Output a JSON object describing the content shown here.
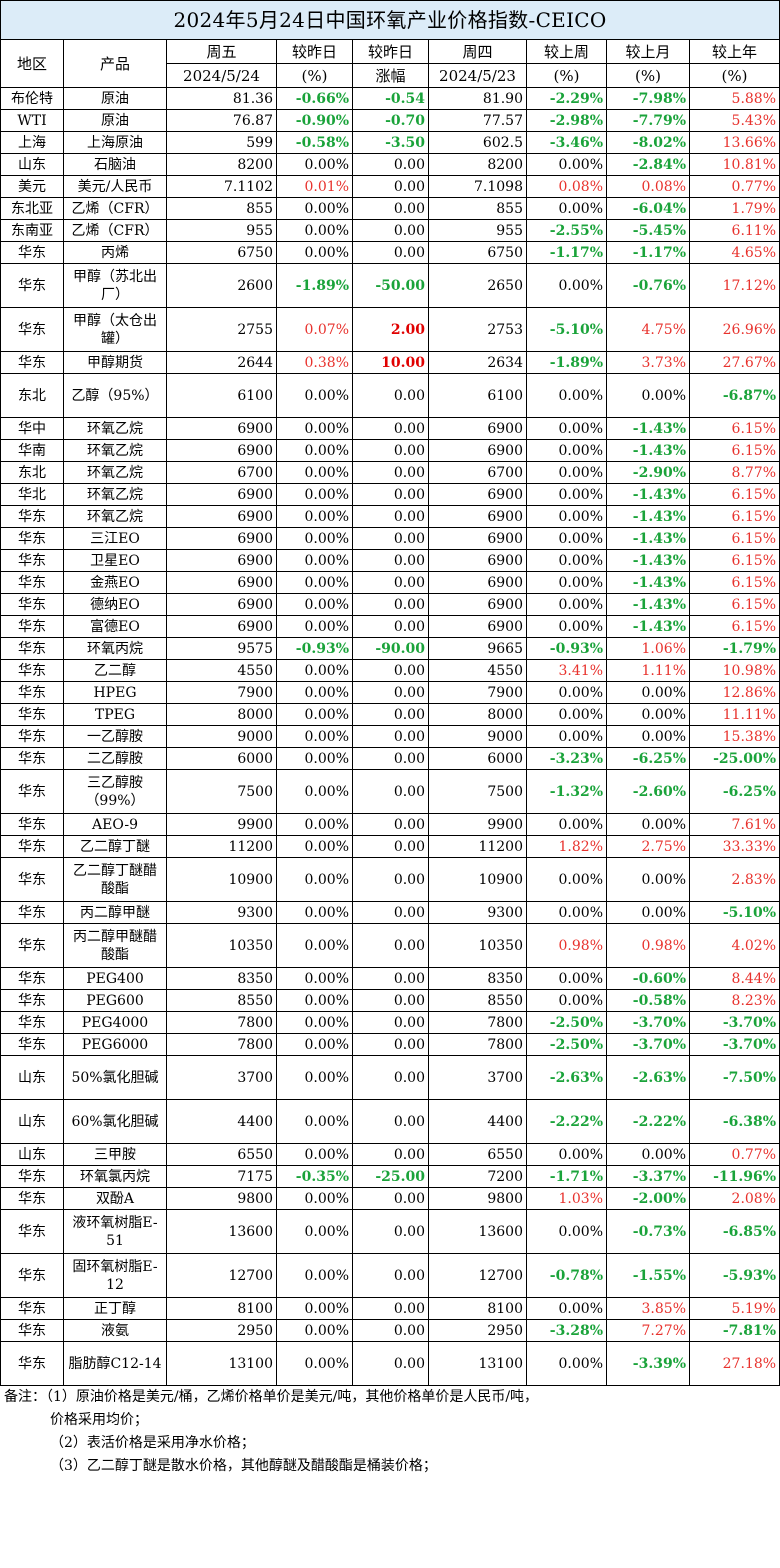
{
  "title": "2024年5月24日中国环氧产业价格指数-CEICO",
  "header": {
    "region": "地区",
    "product": "产品",
    "fri": "周五",
    "fri_date": "2024/5/24",
    "vs_prev": "较昨日",
    "vs_prev_unit": "(%)",
    "vs_prev2": "较昨日",
    "vs_prev2_unit": "涨幅",
    "thu": "周四",
    "thu_date": "2024/5/23",
    "vs_week": "较上周",
    "vs_week_unit": "(%)",
    "vs_month": "较上月",
    "vs_month_unit": "(%)",
    "vs_year": "较上年",
    "vs_year_unit": "(%)"
  },
  "rows": [
    {
      "region": "布伦特",
      "product": "原油",
      "fri": "81.36",
      "pct": "-0.66%",
      "chg": "-0.54",
      "thu": "81.90",
      "week": "-2.29%",
      "month": "-7.98%",
      "year": "5.88%"
    },
    {
      "region": "WTI",
      "product": "原油",
      "fri": "76.87",
      "pct": "-0.90%",
      "chg": "-0.70",
      "thu": "77.57",
      "week": "-2.98%",
      "month": "-7.79%",
      "year": "5.43%"
    },
    {
      "region": "上海",
      "product": "上海原油",
      "fri": "599",
      "pct": "-0.58%",
      "chg": "-3.50",
      "thu": "602.5",
      "week": "-3.46%",
      "month": "-8.02%",
      "year": "13.66%"
    },
    {
      "region": "山东",
      "product": "石脑油",
      "fri": "8200",
      "pct": "0.00%",
      "chg": "0.00",
      "thu": "8200",
      "week": "0.00%",
      "month": "-2.84%",
      "year": "10.81%"
    },
    {
      "region": "美元",
      "product": "美元/人民币",
      "fri": "7.1102",
      "pct": "0.01%",
      "chg": "0.00",
      "thu": "7.1098",
      "week": "0.08%",
      "month": "0.08%",
      "year": "0.77%"
    },
    {
      "region": "东北亚",
      "product": "乙烯（CFR）",
      "fri": "855",
      "pct": "0.00%",
      "chg": "0.00",
      "thu": "855",
      "week": "0.00%",
      "month": "-6.04%",
      "year": "1.79%"
    },
    {
      "region": "东南亚",
      "product": "乙烯（CFR）",
      "fri": "955",
      "pct": "0.00%",
      "chg": "0.00",
      "thu": "955",
      "week": "-2.55%",
      "month": "-5.45%",
      "year": "6.11%"
    },
    {
      "region": "华东",
      "product": "丙烯",
      "fri": "6750",
      "pct": "0.00%",
      "chg": "0.00",
      "thu": "6750",
      "week": "-1.17%",
      "month": "-1.17%",
      "year": "4.65%"
    },
    {
      "region": "华东",
      "product": "甲醇（苏北出厂）",
      "fri": "2600",
      "pct": "-1.89%",
      "chg": "-50.00",
      "thu": "2650",
      "week": "0.00%",
      "month": "-0.76%",
      "year": "17.12%",
      "tall": true
    },
    {
      "region": "华东",
      "product": "甲醇（太仓出罐）",
      "fri": "2755",
      "pct": "0.07%",
      "chg": "2.00",
      "thu": "2753",
      "week": "-5.10%",
      "month": "4.75%",
      "year": "26.96%",
      "tall": true
    },
    {
      "region": "华东",
      "product": "甲醇期货",
      "fri": "2644",
      "pct": "0.38%",
      "chg": "10.00",
      "thu": "2634",
      "week": "-1.89%",
      "month": "3.73%",
      "year": "27.67%"
    },
    {
      "region": "东北",
      "product": "乙醇（95%）",
      "fri": "6100",
      "pct": "0.00%",
      "chg": "0.00",
      "thu": "6100",
      "week": "0.00%",
      "month": "0.00%",
      "year": "-6.87%",
      "tall": true
    },
    {
      "region": "华中",
      "product": "环氧乙烷",
      "fri": "6900",
      "pct": "0.00%",
      "chg": "0.00",
      "thu": "6900",
      "week": "0.00%",
      "month": "-1.43%",
      "year": "6.15%"
    },
    {
      "region": "华南",
      "product": "环氧乙烷",
      "fri": "6900",
      "pct": "0.00%",
      "chg": "0.00",
      "thu": "6900",
      "week": "0.00%",
      "month": "-1.43%",
      "year": "6.15%"
    },
    {
      "region": "东北",
      "product": "环氧乙烷",
      "fri": "6700",
      "pct": "0.00%",
      "chg": "0.00",
      "thu": "6700",
      "week": "0.00%",
      "month": "-2.90%",
      "year": "8.77%"
    },
    {
      "region": "华北",
      "product": "环氧乙烷",
      "fri": "6900",
      "pct": "0.00%",
      "chg": "0.00",
      "thu": "6900",
      "week": "0.00%",
      "month": "-1.43%",
      "year": "6.15%"
    },
    {
      "region": "华东",
      "product": "环氧乙烷",
      "fri": "6900",
      "pct": "0.00%",
      "chg": "0.00",
      "thu": "6900",
      "week": "0.00%",
      "month": "-1.43%",
      "year": "6.15%"
    },
    {
      "region": "华东",
      "product": "三江EO",
      "fri": "6900",
      "pct": "0.00%",
      "chg": "0.00",
      "thu": "6900",
      "week": "0.00%",
      "month": "-1.43%",
      "year": "6.15%"
    },
    {
      "region": "华东",
      "product": "卫星EO",
      "fri": "6900",
      "pct": "0.00%",
      "chg": "0.00",
      "thu": "6900",
      "week": "0.00%",
      "month": "-1.43%",
      "year": "6.15%"
    },
    {
      "region": "华东",
      "product": "金燕EO",
      "fri": "6900",
      "pct": "0.00%",
      "chg": "0.00",
      "thu": "6900",
      "week": "0.00%",
      "month": "-1.43%",
      "year": "6.15%"
    },
    {
      "region": "华东",
      "product": "德纳EO",
      "fri": "6900",
      "pct": "0.00%",
      "chg": "0.00",
      "thu": "6900",
      "week": "0.00%",
      "month": "-1.43%",
      "year": "6.15%"
    },
    {
      "region": "华东",
      "product": "富德EO",
      "fri": "6900",
      "pct": "0.00%",
      "chg": "0.00",
      "thu": "6900",
      "week": "0.00%",
      "month": "-1.43%",
      "year": "6.15%"
    },
    {
      "region": "华东",
      "product": "环氧丙烷",
      "fri": "9575",
      "pct": "-0.93%",
      "chg": "-90.00",
      "thu": "9665",
      "week": "-0.93%",
      "month": "1.06%",
      "year": "-1.79%"
    },
    {
      "region": "华东",
      "product": "乙二醇",
      "fri": "4550",
      "pct": "0.00%",
      "chg": "0.00",
      "thu": "4550",
      "week": "3.41%",
      "month": "1.11%",
      "year": "10.98%"
    },
    {
      "region": "华东",
      "product": "HPEG",
      "fri": "7900",
      "pct": "0.00%",
      "chg": "0.00",
      "thu": "7900",
      "week": "0.00%",
      "month": "0.00%",
      "year": "12.86%"
    },
    {
      "region": "华东",
      "product": "TPEG",
      "fri": "8000",
      "pct": "0.00%",
      "chg": "0.00",
      "thu": "8000",
      "week": "0.00%",
      "month": "0.00%",
      "year": "11.11%"
    },
    {
      "region": "华东",
      "product": "一乙醇胺",
      "fri": "9000",
      "pct": "0.00%",
      "chg": "0.00",
      "thu": "9000",
      "week": "0.00%",
      "month": "0.00%",
      "year": "15.38%"
    },
    {
      "region": "华东",
      "product": "二乙醇胺",
      "fri": "6000",
      "pct": "0.00%",
      "chg": "0.00",
      "thu": "6000",
      "week": "-3.23%",
      "month": "-6.25%",
      "year": "-25.00%"
    },
    {
      "region": "华东",
      "product": "三乙醇胺（99%）",
      "fri": "7500",
      "pct": "0.00%",
      "chg": "0.00",
      "thu": "7500",
      "week": "-1.32%",
      "month": "-2.60%",
      "year": "-6.25%",
      "tall": true
    },
    {
      "region": "华东",
      "product": "AEO-9",
      "fri": "9900",
      "pct": "0.00%",
      "chg": "0.00",
      "thu": "9900",
      "week": "0.00%",
      "month": "0.00%",
      "year": "7.61%"
    },
    {
      "region": "华东",
      "product": "乙二醇丁醚",
      "fri": "11200",
      "pct": "0.00%",
      "chg": "0.00",
      "thu": "11200",
      "week": "1.82%",
      "month": "2.75%",
      "year": "33.33%"
    },
    {
      "region": "华东",
      "product": "乙二醇丁醚醋酸酯",
      "fri": "10900",
      "pct": "0.00%",
      "chg": "0.00",
      "thu": "10900",
      "week": "0.00%",
      "month": "0.00%",
      "year": "2.83%",
      "tall": true
    },
    {
      "region": "华东",
      "product": "丙二醇甲醚",
      "fri": "9300",
      "pct": "0.00%",
      "chg": "0.00",
      "thu": "9300",
      "week": "0.00%",
      "month": "0.00%",
      "year": "-5.10%"
    },
    {
      "region": "华东",
      "product": "丙二醇甲醚醋酸酯",
      "fri": "10350",
      "pct": "0.00%",
      "chg": "0.00",
      "thu": "10350",
      "week": "0.98%",
      "month": "0.98%",
      "year": "4.02%",
      "tall": true
    },
    {
      "region": "华东",
      "product": "PEG400",
      "fri": "8350",
      "pct": "0.00%",
      "chg": "0.00",
      "thu": "8350",
      "week": "0.00%",
      "month": "-0.60%",
      "year": "8.44%"
    },
    {
      "region": "华东",
      "product": "PEG600",
      "fri": "8550",
      "pct": "0.00%",
      "chg": "0.00",
      "thu": "8550",
      "week": "0.00%",
      "month": "-0.58%",
      "year": "8.23%"
    },
    {
      "region": "华东",
      "product": "PEG4000",
      "fri": "7800",
      "pct": "0.00%",
      "chg": "0.00",
      "thu": "7800",
      "week": "-2.50%",
      "month": "-3.70%",
      "year": "-3.70%"
    },
    {
      "region": "华东",
      "product": "PEG6000",
      "fri": "7800",
      "pct": "0.00%",
      "chg": "0.00",
      "thu": "7800",
      "week": "-2.50%",
      "month": "-3.70%",
      "year": "-3.70%"
    },
    {
      "region": "山东",
      "product": "50%氯化胆碱",
      "fri": "3700",
      "pct": "0.00%",
      "chg": "0.00",
      "thu": "3700",
      "week": "-2.63%",
      "month": "-2.63%",
      "year": "-7.50%",
      "tall": true
    },
    {
      "region": "山东",
      "product": "60%氯化胆碱",
      "fri": "4400",
      "pct": "0.00%",
      "chg": "0.00",
      "thu": "4400",
      "week": "-2.22%",
      "month": "-2.22%",
      "year": "-6.38%",
      "tall": true
    },
    {
      "region": "山东",
      "product": "三甲胺",
      "fri": "6550",
      "pct": "0.00%",
      "chg": "0.00",
      "thu": "6550",
      "week": "0.00%",
      "month": "0.00%",
      "year": "0.77%"
    },
    {
      "region": "华东",
      "product": "环氧氯丙烷",
      "fri": "7175",
      "pct": "-0.35%",
      "chg": "-25.00",
      "thu": "7200",
      "week": "-1.71%",
      "month": "-3.37%",
      "year": "-11.96%"
    },
    {
      "region": "华东",
      "product": "双酚A",
      "fri": "9800",
      "pct": "0.00%",
      "chg": "0.00",
      "thu": "9800",
      "week": "1.03%",
      "month": "-2.00%",
      "year": "2.08%"
    },
    {
      "region": "华东",
      "product": "液环氧树脂E-51",
      "fri": "13600",
      "pct": "0.00%",
      "chg": "0.00",
      "thu": "13600",
      "week": "0.00%",
      "month": "-0.73%",
      "year": "-6.85%",
      "tall": true
    },
    {
      "region": "华东",
      "product": "固环氧树脂E-12",
      "fri": "12700",
      "pct": "0.00%",
      "chg": "0.00",
      "thu": "12700",
      "week": "-0.78%",
      "month": "-1.55%",
      "year": "-5.93%",
      "tall": true
    },
    {
      "region": "华东",
      "product": "正丁醇",
      "fri": "8100",
      "pct": "0.00%",
      "chg": "0.00",
      "thu": "8100",
      "week": "0.00%",
      "month": "3.85%",
      "year": "5.19%"
    },
    {
      "region": "华东",
      "product": "液氨",
      "fri": "2950",
      "pct": "0.00%",
      "chg": "0.00",
      "thu": "2950",
      "week": "-3.28%",
      "month": "7.27%",
      "year": "-7.81%"
    },
    {
      "region": "华东",
      "product": "脂肪醇C12-14",
      "fri": "13100",
      "pct": "0.00%",
      "chg": "0.00",
      "thu": "13100",
      "week": "0.00%",
      "month": "-3.39%",
      "year": "27.18%",
      "tall": true
    }
  ],
  "notes": {
    "line1": "备注：（1）原油价格是美元/桶，乙烯价格单价是美元/吨，其他价格单价是人民币/吨，",
    "line2": "价格采用均价；",
    "line3": "（2）表活价格是采用净水价格；",
    "line4": "（3）乙二醇丁醚是散水价格，其他醇醚及醋酸酯是桶装价格；"
  },
  "colors": {
    "title_bg": "#dcecf8",
    "negative": "#1aa33a",
    "positive": "#e8322d",
    "positive_change": "#e00000"
  }
}
